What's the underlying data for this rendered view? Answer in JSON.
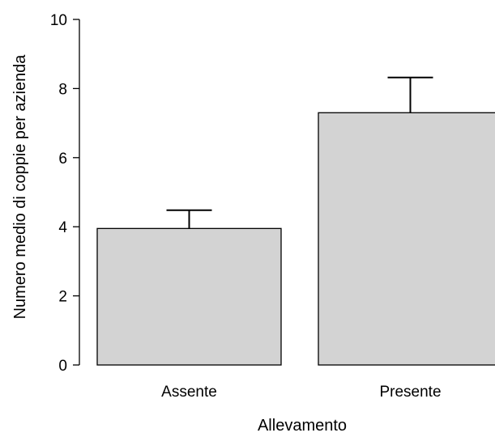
{
  "chart_data": {
    "type": "bar",
    "title": "",
    "xlabel": "Allevamento",
    "ylabel": "Numero medio di coppie per azienda",
    "categories": [
      "Assente",
      "Presente"
    ],
    "values": [
      3.95,
      7.3
    ],
    "error_upper": [
      4.48,
      8.32
    ],
    "ylim": [
      0,
      10
    ],
    "yticks": [
      "0",
      "2",
      "4",
      "6",
      "8",
      "10"
    ],
    "grid": false,
    "bar_color": "#d3d3d3",
    "bar_stroke": "#000000"
  }
}
